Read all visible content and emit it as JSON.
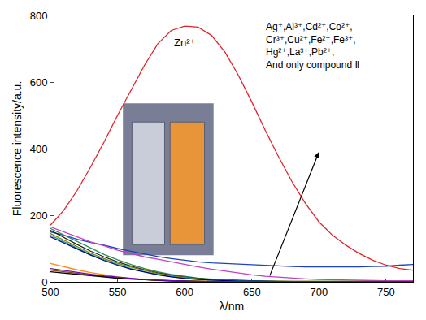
{
  "chart_data": {
    "type": "line",
    "x_label": "λ/nm",
    "y_label": "Fluorescence intensity/a.u.",
    "xlim": [
      500,
      770
    ],
    "xticks": [
      500,
      550,
      600,
      650,
      700,
      750
    ],
    "ylim": [
      0,
      800
    ],
    "yticks": [
      0,
      200,
      400,
      600,
      800
    ],
    "grid": false,
    "annotations": [
      "Zn²⁺",
      "Ag⁺,Al³⁺,Cd²⁺,Co²⁺,Cr³⁺,Cu²⁺,Fe²⁺,Fe³⁺,Hg²⁺,La³⁺,Pb²⁺, And only compound Ⅱ"
    ],
    "x": [
      500,
      510,
      520,
      530,
      540,
      550,
      560,
      570,
      580,
      590,
      600,
      610,
      620,
      630,
      640,
      650,
      660,
      670,
      680,
      690,
      700,
      710,
      720,
      730,
      740,
      750,
      760,
      770
    ],
    "series": [
      {
        "color": "#e0242a",
        "values": [
          170,
          215,
          275,
          345,
          420,
          500,
          575,
          650,
          715,
          755,
          768,
          765,
          740,
          690,
          620,
          540,
          455,
          375,
          300,
          235,
          180,
          140,
          110,
          85,
          65,
          50,
          40,
          35
        ]
      },
      {
        "color": "#2040c0",
        "values": [
          150,
          140,
          128,
          118,
          110,
          100,
          92,
          84,
          76,
          70,
          65,
          60,
          57,
          55,
          53,
          51,
          49,
          47,
          46,
          45,
          45,
          44,
          44,
          45,
          46,
          47,
          50,
          52
        ]
      },
      {
        "color": "#c040c0",
        "values": [
          165,
          150,
          135,
          120,
          108,
          95,
          85,
          75,
          68,
          60,
          52,
          45,
          38,
          32,
          26,
          21,
          17,
          14,
          11,
          9,
          7,
          6,
          5,
          4,
          4,
          3,
          3,
          3
        ]
      },
      {
        "color": "#2e8b57",
        "values": [
          160,
          140,
          120,
          100,
          82,
          66,
          52,
          40,
          30,
          22,
          16,
          11,
          8,
          6,
          4,
          3,
          2,
          2,
          1,
          1,
          1,
          1,
          1,
          1,
          1,
          1,
          1,
          1
        ]
      },
      {
        "color": "#222222",
        "values": [
          155,
          133,
          112,
          92,
          75,
          60,
          47,
          36,
          27,
          20,
          14,
          10,
          7,
          5,
          4,
          3,
          2,
          1,
          1,
          1,
          1,
          1,
          1,
          1,
          1,
          1,
          1,
          1
        ]
      },
      {
        "color": "#808000",
        "values": [
          145,
          125,
          105,
          86,
          70,
          56,
          44,
          34,
          25,
          18,
          13,
          9,
          6,
          4,
          3,
          2,
          2,
          1,
          1,
          1,
          1,
          1,
          1,
          1,
          1,
          1,
          1,
          1
        ]
      },
      {
        "color": "#20a0a0",
        "values": [
          140,
          120,
          100,
          82,
          66,
          52,
          40,
          30,
          22,
          16,
          11,
          8,
          5,
          4,
          3,
          2,
          1,
          1,
          1,
          1,
          1,
          1,
          1,
          1,
          1,
          1,
          1,
          1
        ]
      },
      {
        "color": "#000080",
        "values": [
          135,
          116,
          97,
          80,
          64,
          50,
          38,
          29,
          21,
          15,
          10,
          7,
          5,
          3,
          2,
          2,
          1,
          1,
          1,
          1,
          1,
          1,
          1,
          1,
          1,
          1,
          1,
          1
        ]
      },
      {
        "color": "#ff8c00",
        "values": [
          55,
          45,
          36,
          28,
          21,
          15,
          10,
          7,
          4,
          3,
          2,
          1,
          1,
          1,
          1,
          1,
          1,
          1,
          1,
          1,
          1,
          1,
          1,
          1,
          1,
          1,
          1,
          1
        ]
      },
      {
        "color": "#8b4513",
        "values": [
          35,
          30,
          25,
          20,
          16,
          12,
          9,
          6,
          4,
          3,
          2,
          1,
          1,
          1,
          1,
          1,
          1,
          1,
          1,
          1,
          1,
          1,
          1,
          1,
          1,
          1,
          1,
          1
        ]
      },
      {
        "color": "#000000",
        "values": [
          30,
          26,
          22,
          18,
          14,
          11,
          8,
          6,
          4,
          3,
          2,
          1,
          1,
          1,
          1,
          1,
          1,
          1,
          1,
          1,
          1,
          1,
          1,
          1,
          1,
          1,
          1,
          1
        ]
      },
      {
        "color": "#6a0dad",
        "values": [
          40,
          34,
          28,
          23,
          18,
          14,
          10,
          7,
          5,
          3,
          2,
          1,
          1,
          1,
          1,
          1,
          1,
          1,
          1,
          1,
          1,
          1,
          1,
          1,
          1,
          1,
          1,
          1
        ]
      }
    ]
  }
}
